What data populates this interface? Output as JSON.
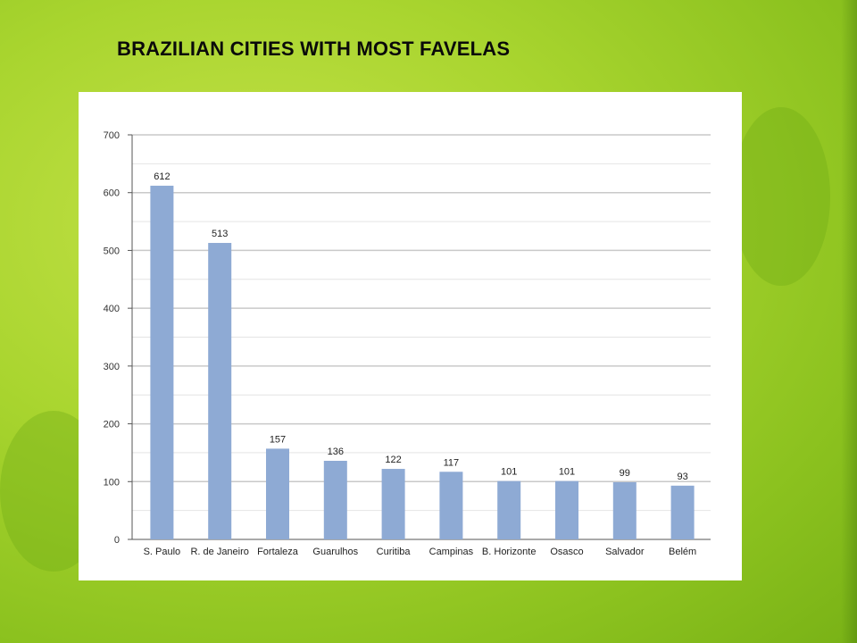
{
  "title": "BRAZILIAN CITIES WITH MOST FAVELAS",
  "colors": {
    "bar": "#8eaad4",
    "grid": "#c9c9c9",
    "background": "#a9d52f"
  },
  "chart_data": {
    "type": "bar",
    "categories": [
      "S. Paulo",
      "R. de Janeiro",
      "Fortaleza",
      "Guarulhos",
      "Curitiba",
      "Campinas",
      "B. Horizonte",
      "Osasco",
      "Salvador",
      "Belém"
    ],
    "values": [
      612,
      513,
      157,
      136,
      122,
      117,
      101,
      101,
      99,
      93
    ],
    "data_labels": [
      "612",
      "513",
      "157",
      "136",
      "122",
      "117",
      "101",
      "101",
      "99",
      "93"
    ],
    "yticks": [
      "0",
      "100",
      "200",
      "300",
      "400",
      "500",
      "600",
      "700"
    ],
    "ylim": [
      0,
      700
    ],
    "grid": true
  }
}
